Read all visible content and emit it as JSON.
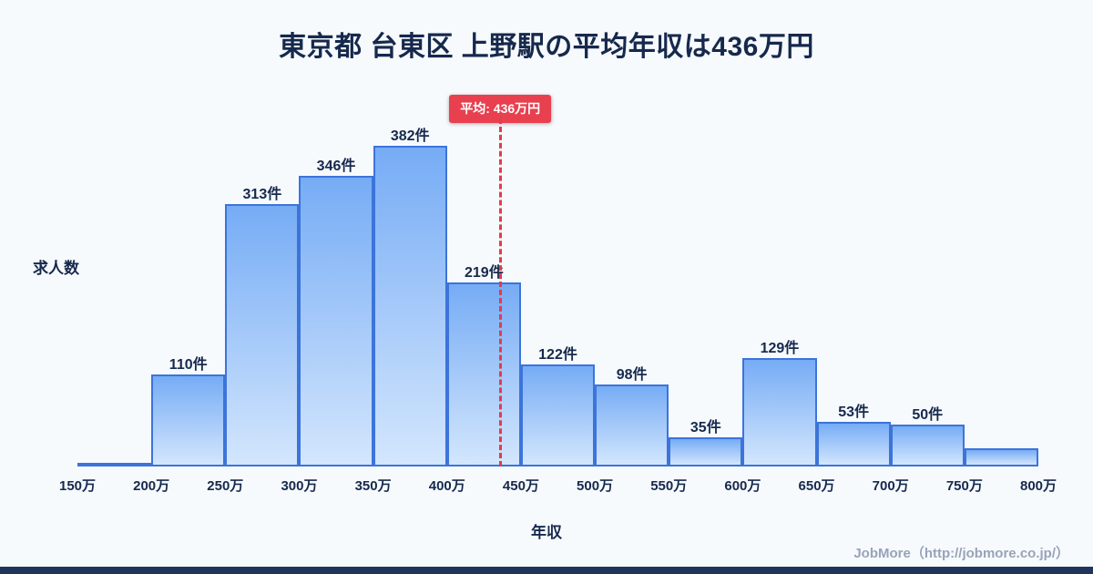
{
  "page": {
    "footer": "JobMore（http://jobmore.co.jp/）"
  },
  "chart_data": {
    "type": "bar",
    "title": "東京都 台東区 上野駅の平均年収は436万円",
    "xlabel": "年収",
    "ylabel": "求人数",
    "x_min": 150,
    "x_max": 800,
    "bin_size": 50,
    "tick_labels": [
      "150万",
      "200万",
      "250万",
      "300万",
      "350万",
      "400万",
      "450万",
      "500万",
      "550万",
      "600万",
      "650万",
      "700万",
      "750万",
      "800万"
    ],
    "values": [
      4,
      110,
      313,
      346,
      382,
      219,
      122,
      98,
      35,
      129,
      53,
      50,
      22
    ],
    "bar_labels": [
      "",
      "110件",
      "313件",
      "346件",
      "382件",
      "219件",
      "122件",
      "98件",
      "35件",
      "129件",
      "53件",
      "50件",
      ""
    ],
    "average": {
      "value": 436,
      "label": "平均: 436万円"
    },
    "ylim": [
      0,
      400
    ],
    "grid": false,
    "legend": false,
    "colors": {
      "background": "#f7fafd",
      "text": "#16294d",
      "bar_fill_top": "#76acf5",
      "bar_fill_bottom": "#d3e6fd",
      "bar_border": "#3c74da",
      "average_line": "#e23b4e",
      "badge_bg": "#e8404f",
      "badge_text": "#ffffff",
      "footer_strip": "#20355e",
      "footer_text": "#99a3b8"
    }
  }
}
